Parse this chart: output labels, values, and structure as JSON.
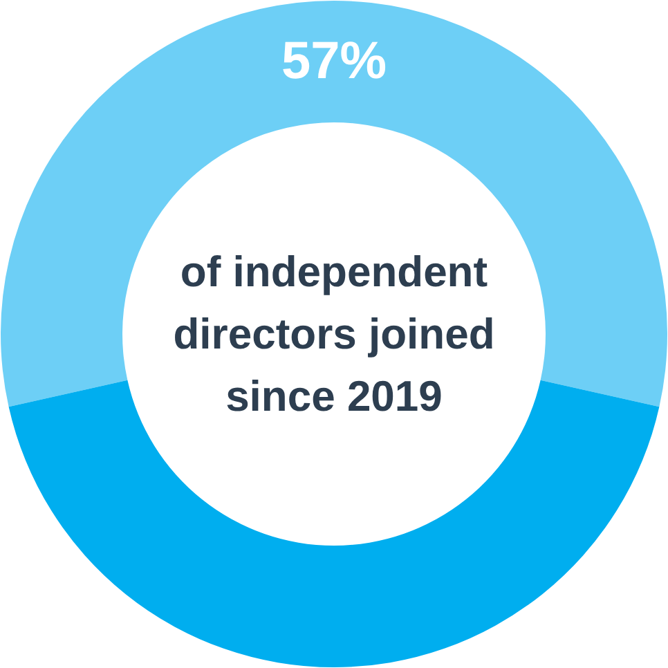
{
  "chart_data": {
    "type": "donut",
    "categories": [
      null,
      null
    ],
    "values": [
      57,
      43
    ],
    "colors": [
      "#6dcff6",
      "#00aeef"
    ],
    "value_labels": [
      "57%",
      null
    ],
    "annotations": [
      "of independent directors joined since 2019"
    ]
  }
}
